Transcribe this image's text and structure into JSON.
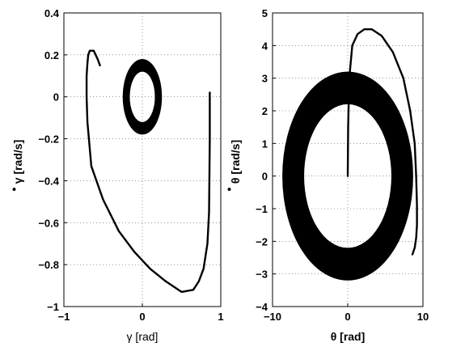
{
  "chart_data": [
    {
      "type": "line",
      "title": "",
      "xlabel": "γ [rad]",
      "ylabel": "γ [rad/s]",
      "ylabel_mark": "•",
      "xlim": [
        -1,
        1
      ],
      "ylim": [
        -1,
        0.4
      ],
      "xticks": [
        "−1",
        "0",
        "1"
      ],
      "yticks": [
        "−1",
        "−0.8",
        "−0.6",
        "−0.4",
        "−0.2",
        "0",
        "0.2",
        "0.4"
      ],
      "grid": true,
      "series": [
        {
          "kind": "transient",
          "x": [
            0.86,
            0.86,
            0.855,
            0.85,
            0.83,
            0.78,
            0.72,
            0.65,
            0.5,
            0.3,
            0.1,
            -0.1,
            -0.3,
            -0.5,
            -0.65,
            -0.7,
            -0.71,
            -0.71,
            -0.7,
            -0.69,
            -0.67,
            -0.62,
            -0.57,
            -0.54
          ],
          "y": [
            0.02,
            -0.2,
            -0.4,
            -0.55,
            -0.7,
            -0.82,
            -0.88,
            -0.92,
            -0.93,
            -0.88,
            -0.82,
            -0.74,
            -0.64,
            -0.49,
            -0.33,
            -0.12,
            0.0,
            0.1,
            0.16,
            0.2,
            0.22,
            0.22,
            0.18,
            0.15
          ]
        },
        {
          "kind": "limit-cycle-band",
          "center": [
            0,
            0
          ],
          "outer_radius": [
            0.25,
            0.18
          ],
          "inner_radius": [
            0.16,
            0.12
          ]
        }
      ]
    },
    {
      "type": "line",
      "title": "",
      "xlabel": "θ [rad]",
      "ylabel": "θ [rad/s]",
      "ylabel_mark": "•",
      "xlim": [
        -10,
        10
      ],
      "ylim": [
        -4,
        5
      ],
      "xticks": [
        "−10",
        "0",
        "10"
      ],
      "yticks": [
        "−4",
        "−3",
        "−2",
        "−1",
        "0",
        "1",
        "2",
        "3",
        "4",
        "5"
      ],
      "grid": true,
      "series": [
        {
          "kind": "transient",
          "x": [
            0,
            0.05,
            0.2,
            0.6,
            1.3,
            2.2,
            3.2,
            4.5,
            6.0,
            7.4,
            8.3,
            8.9,
            9.1,
            9.2,
            9.2,
            9.1,
            8.9,
            8.6
          ],
          "y": [
            0,
            1.5,
            3.0,
            4.0,
            4.35,
            4.5,
            4.5,
            4.3,
            3.8,
            3.0,
            2.0,
            1.0,
            0.0,
            -0.9,
            -1.5,
            -1.9,
            -2.2,
            -2.4
          ]
        },
        {
          "kind": "limit-cycle-band",
          "center": [
            0,
            0
          ],
          "outer_radius": [
            8.7,
            3.2
          ],
          "inner_radius": [
            5.8,
            2.2
          ]
        }
      ]
    }
  ]
}
